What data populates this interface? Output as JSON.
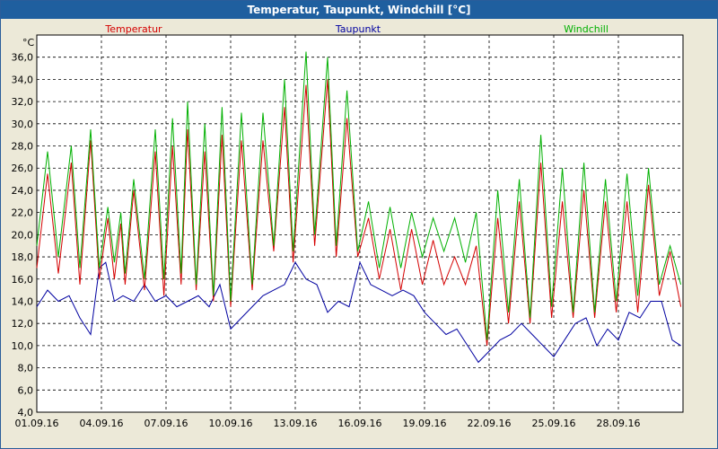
{
  "window": {
    "title": "Temperatur, Taupunkt, Windchill [°C]"
  },
  "colors": {
    "temperatur": "#d40000",
    "taupunkt": "#0000a0",
    "windchill": "#00b000"
  },
  "chart_data": {
    "type": "line",
    "title": "Temperatur, Taupunkt, Windchill [°C]",
    "ylabel": "°C",
    "ylim": [
      4.0,
      38.0
    ],
    "yticks": [
      "4,0",
      "6,0",
      "8,0",
      "10,0",
      "12,0",
      "14,0",
      "16,0",
      "18,0",
      "20,0",
      "22,0",
      "24,0",
      "26,0",
      "28,0",
      "30,0",
      "32,0",
      "34,0",
      "36,0"
    ],
    "xlim": [
      1,
      31
    ],
    "xticks": [
      {
        "day": 1,
        "label": "01.09.16"
      },
      {
        "day": 4,
        "label": "04.09.16"
      },
      {
        "day": 7,
        "label": "07.09.16"
      },
      {
        "day": 10,
        "label": "10.09.16"
      },
      {
        "day": 13,
        "label": "13.09.16"
      },
      {
        "day": 16,
        "label": "16.09.16"
      },
      {
        "day": 19,
        "label": "19.09.16"
      },
      {
        "day": 22,
        "label": "22.09.16"
      },
      {
        "day": 25,
        "label": "25.09.16"
      },
      {
        "day": 28,
        "label": "28.09.16"
      }
    ],
    "grid": true,
    "legend_placement": "top",
    "series": [
      {
        "name": "Temperatur",
        "x": [
          1.0,
          1.5,
          2.0,
          2.6,
          3.0,
          3.5,
          3.9,
          4.3,
          4.6,
          4.9,
          5.1,
          5.5,
          6.0,
          6.5,
          6.9,
          7.3,
          7.7,
          8.0,
          8.4,
          8.8,
          9.2,
          9.6,
          10.0,
          10.5,
          11.0,
          11.5,
          12.0,
          12.5,
          12.9,
          13.5,
          13.9,
          14.5,
          14.9,
          15.4,
          15.9,
          16.4,
          16.9,
          17.4,
          17.9,
          18.4,
          18.9,
          19.4,
          19.9,
          20.4,
          20.9,
          21.4,
          21.9,
          22.4,
          22.9,
          23.4,
          23.9,
          24.4,
          24.9,
          25.4,
          25.9,
          26.4,
          26.9,
          27.4,
          27.9,
          28.4,
          28.9,
          29.4,
          29.9,
          30.4,
          30.9
        ],
        "values": [
          17.0,
          25.5,
          16.5,
          26.5,
          15.5,
          28.5,
          16.0,
          21.5,
          16.0,
          21.0,
          15.5,
          24.0,
          15.0,
          27.5,
          14.5,
          28.0,
          15.5,
          29.5,
          15.0,
          27.5,
          14.0,
          29.0,
          13.5,
          28.5,
          15.0,
          28.5,
          18.5,
          31.5,
          17.5,
          33.5,
          19.0,
          34.0,
          18.0,
          30.5,
          18.0,
          21.5,
          16.0,
          20.5,
          15.0,
          20.5,
          15.5,
          19.5,
          15.5,
          18.0,
          15.5,
          19.0,
          10.0,
          21.5,
          12.0,
          23.0,
          12.0,
          26.5,
          12.5,
          23.0,
          12.5,
          24.0,
          12.5,
          23.0,
          13.0,
          23.0,
          13.0,
          24.5,
          14.5,
          18.5,
          13.5
        ]
      },
      {
        "name": "Taupunkt",
        "x": [
          1.0,
          1.5,
          2.0,
          2.5,
          3.0,
          3.5,
          3.9,
          4.2,
          4.6,
          5.0,
          5.5,
          6.0,
          6.5,
          7.0,
          7.5,
          8.0,
          8.5,
          9.0,
          9.5,
          10.0,
          10.5,
          11.0,
          11.5,
          12.0,
          12.5,
          13.0,
          13.5,
          14.0,
          14.5,
          15.0,
          15.5,
          16.0,
          16.5,
          17.0,
          17.5,
          18.0,
          18.5,
          19.0,
          19.5,
          20.0,
          20.5,
          21.0,
          21.5,
          22.0,
          22.5,
          23.0,
          23.5,
          24.0,
          24.5,
          25.0,
          25.5,
          26.0,
          26.5,
          27.0,
          27.5,
          28.0,
          28.5,
          29.0,
          29.5,
          30.0,
          30.5,
          30.9
        ],
        "values": [
          13.5,
          15.0,
          14.0,
          14.5,
          12.5,
          11.0,
          17.0,
          17.5,
          14.0,
          14.5,
          14.0,
          15.5,
          14.0,
          14.5,
          13.5,
          14.0,
          14.5,
          13.5,
          15.5,
          11.5,
          12.5,
          13.5,
          14.5,
          15.0,
          15.5,
          17.5,
          16.0,
          15.5,
          13.0,
          14.0,
          13.5,
          17.5,
          15.5,
          15.0,
          14.5,
          15.0,
          14.5,
          13.0,
          12.0,
          11.0,
          11.5,
          10.0,
          8.5,
          9.5,
          10.5,
          11.0,
          12.0,
          11.0,
          10.0,
          9.0,
          10.5,
          12.0,
          12.5,
          10.0,
          11.5,
          10.5,
          13.0,
          12.5,
          14.0,
          14.0,
          10.5,
          10.0
        ]
      },
      {
        "name": "Windchill",
        "x": [
          1.0,
          1.5,
          2.0,
          2.6,
          3.0,
          3.5,
          3.9,
          4.3,
          4.6,
          4.9,
          5.1,
          5.5,
          6.0,
          6.5,
          6.9,
          7.3,
          7.7,
          8.0,
          8.4,
          8.8,
          9.2,
          9.6,
          10.0,
          10.5,
          11.0,
          11.5,
          12.0,
          12.5,
          12.9,
          13.5,
          13.9,
          14.5,
          14.9,
          15.4,
          15.9,
          16.4,
          16.9,
          17.4,
          17.9,
          18.4,
          18.9,
          19.4,
          19.9,
          20.4,
          20.9,
          21.4,
          21.9,
          22.4,
          22.9,
          23.4,
          23.9,
          24.4,
          24.9,
          25.4,
          25.9,
          26.4,
          26.9,
          27.4,
          27.9,
          28.4,
          28.9,
          29.4,
          29.9,
          30.4,
          30.9
        ],
        "values": [
          19.0,
          27.5,
          18.0,
          28.0,
          17.0,
          29.5,
          17.0,
          22.5,
          17.5,
          22.0,
          16.5,
          25.0,
          16.0,
          29.5,
          16.0,
          30.5,
          16.5,
          32.0,
          15.5,
          30.0,
          14.5,
          31.5,
          14.0,
          31.0,
          15.5,
          31.0,
          19.0,
          34.0,
          18.5,
          36.5,
          20.0,
          36.0,
          19.0,
          33.0,
          18.5,
          23.0,
          17.0,
          22.5,
          17.0,
          22.0,
          18.0,
          21.5,
          18.5,
          21.5,
          17.5,
          22.0,
          10.5,
          24.0,
          13.0,
          25.0,
          12.5,
          29.0,
          13.5,
          26.0,
          13.0,
          26.5,
          13.0,
          25.0,
          14.0,
          25.5,
          14.5,
          26.0,
          15.5,
          19.0,
          15.5
        ]
      }
    ]
  }
}
